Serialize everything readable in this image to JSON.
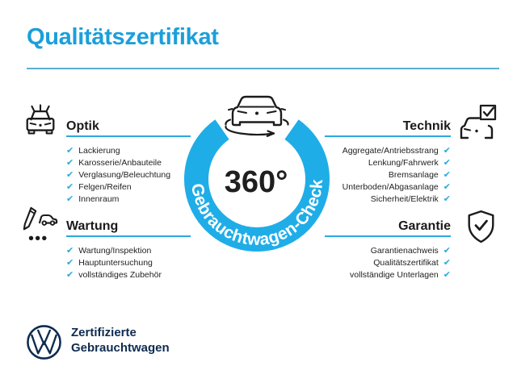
{
  "header": {
    "title": "Qualitätszertifikat"
  },
  "badge": {
    "degree_label": "360°",
    "ring_label": "Gebrauchtwagen-Check"
  },
  "sections": [
    {
      "id": "optik",
      "title": "Optik",
      "icon": "car-shine-icon",
      "items": [
        "Lackierung",
        "Karosserie/Anbauteile",
        "Verglasung/Beleuchtung",
        "Felgen/Reifen",
        "Innenraum"
      ]
    },
    {
      "id": "technik",
      "title": "Technik",
      "icon": "car-checkbox-icon",
      "items": [
        "Aggregate/Antriebsstrang",
        "Lenkung/Fahrwerk",
        "Bremsanlage",
        "Unterboden/Abgasanlage",
        "Sicherheit/Elektrik"
      ]
    },
    {
      "id": "wartung",
      "title": "Wartung",
      "icon": "service-checklist-icon",
      "items": [
        "Wartung/Inspektion",
        "Hauptuntersuchung",
        "vollständiges Zubehör"
      ]
    },
    {
      "id": "garantie",
      "title": "Garantie",
      "icon": "shield-check-icon",
      "items": [
        "Garantienachweis",
        "Qualitätszertifikat",
        "vollständige Unterlagen"
      ]
    }
  ],
  "footer": {
    "line1": "Zertifizierte",
    "line2": "Gebrauchtwagen",
    "logo": "vw-logo"
  },
  "icons": {
    "check_glyph": "✔",
    "badge_center": "car-front-rotation-icon"
  },
  "colors": {
    "title_blue": "#1b9fda",
    "ring_blue": "#1fade8",
    "check_blue": "#29a9de",
    "brand_navy": "#0e2b50",
    "text_dark": "#1a1a1a"
  }
}
